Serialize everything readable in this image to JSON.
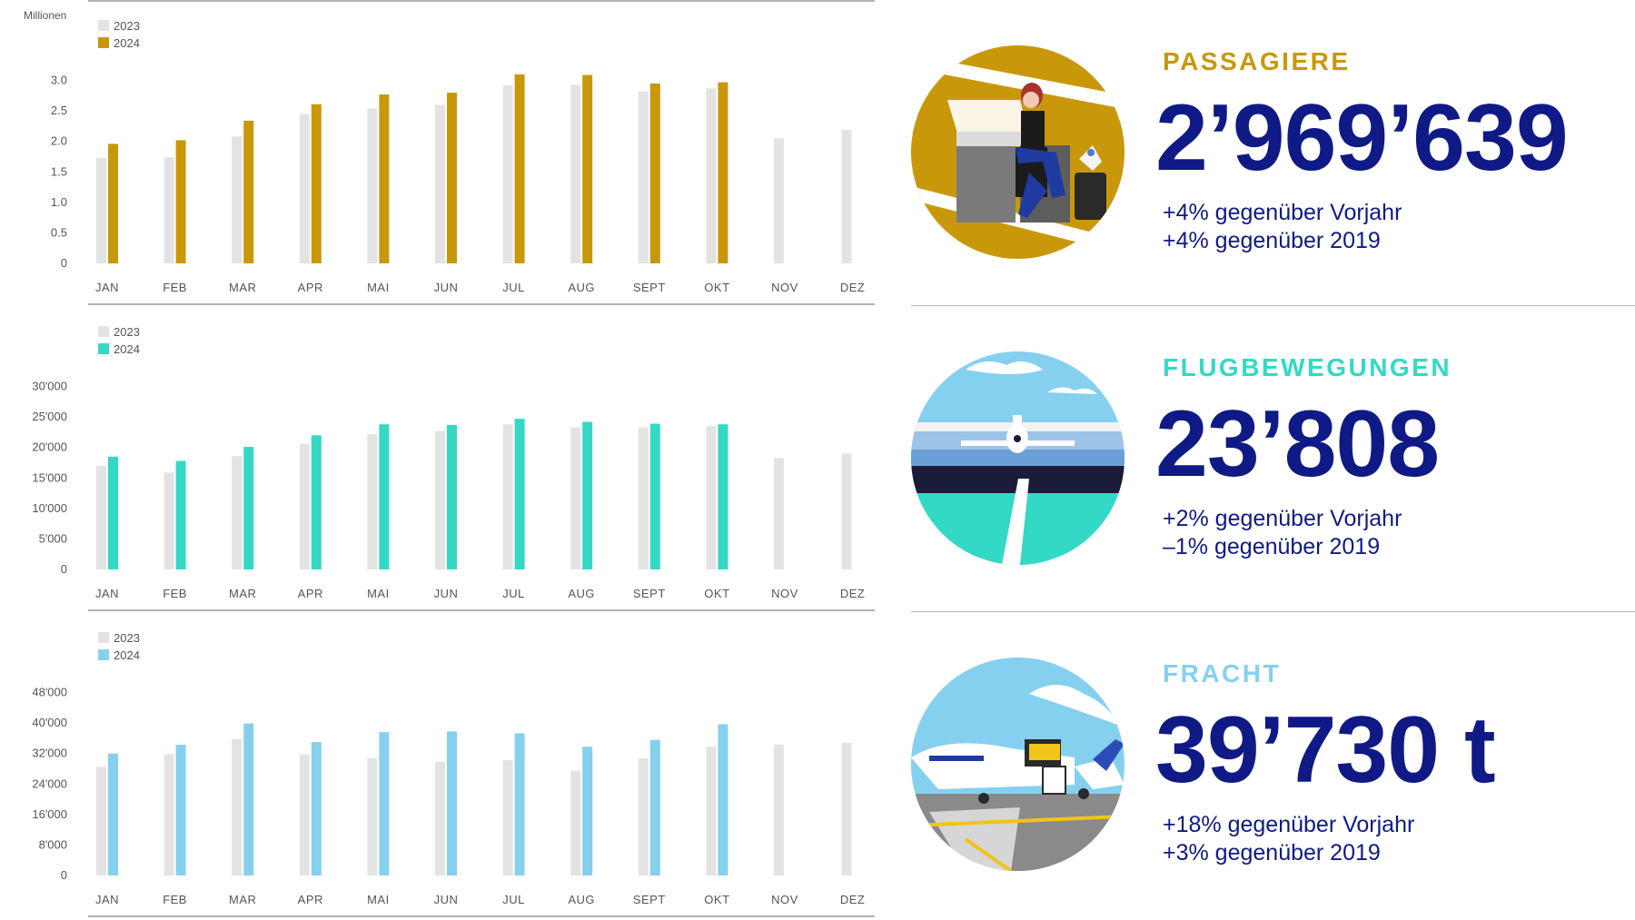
{
  "colors": {
    "bar_2023": "#e3e3e3",
    "axis_text": "#555555",
    "value_text": "#0f1a86",
    "gold": "#c9980a",
    "teal": "#33d9c5",
    "sky": "#86d0ef"
  },
  "chart_data": [
    {
      "type": "bar",
      "ylabel": "Millionen",
      "categories": [
        "JAN",
        "FEB",
        "MAR",
        "APR",
        "MAI",
        "JUN",
        "JUL",
        "AUG",
        "SEPT",
        "OKT",
        "NOV",
        "DEZ"
      ],
      "ylim": [
        0,
        3.5
      ],
      "yticks": [
        "3.0",
        "2.5",
        "2.0",
        "1.5",
        "1.0",
        "0.5",
        "0"
      ],
      "ytick_values": [
        3.0,
        2.5,
        2.0,
        1.5,
        1.0,
        0.5,
        0
      ],
      "legend_position": "top-left",
      "series": [
        {
          "name": "2023",
          "color": "#e3e3e3",
          "values": [
            1.73,
            1.74,
            2.08,
            2.45,
            2.54,
            2.6,
            2.92,
            2.93,
            2.82,
            2.87,
            2.05,
            2.19
          ]
        },
        {
          "name": "2024",
          "color": "#c9980a",
          "values": [
            1.96,
            2.02,
            2.34,
            2.61,
            2.77,
            2.8,
            3.1,
            3.09,
            2.95,
            2.97,
            null,
            null
          ]
        }
      ]
    },
    {
      "type": "bar",
      "ylabel": "",
      "categories": [
        "JAN",
        "FEB",
        "MAR",
        "APR",
        "MAI",
        "JUN",
        "JUL",
        "AUG",
        "SEPT",
        "OKT",
        "NOV",
        "DEZ"
      ],
      "ylim": [
        0,
        35000
      ],
      "yticks": [
        "30'000",
        "25'000",
        "20'000",
        "15'000",
        "10'000",
        "5'000",
        "0"
      ],
      "ytick_values": [
        30000,
        25000,
        20000,
        15000,
        10000,
        5000,
        0
      ],
      "legend_position": "top-left",
      "series": [
        {
          "name": "2023",
          "color": "#e3e3e3",
          "values": [
            17000,
            15900,
            18600,
            20600,
            22200,
            22700,
            23800,
            23300,
            23300,
            23500,
            18300,
            19000
          ]
        },
        {
          "name": "2024",
          "color": "#33d9c5",
          "values": [
            18500,
            17800,
            20100,
            22000,
            23800,
            23700,
            24700,
            24200,
            23900,
            23800,
            null,
            null
          ]
        }
      ]
    },
    {
      "type": "bar",
      "ylabel": "",
      "categories": [
        "JAN",
        "FEB",
        "MAR",
        "APR",
        "MAI",
        "JUN",
        "JUL",
        "AUG",
        "SEPT",
        "OKT",
        "NOV",
        "DEZ"
      ],
      "ylim": [
        0,
        56000
      ],
      "yticks": [
        "48'000",
        "40'000",
        "32'000",
        "24'000",
        "16'000",
        "8'000",
        "0"
      ],
      "ytick_values": [
        48000,
        40000,
        32000,
        24000,
        16000,
        8000,
        0
      ],
      "legend_position": "top-left",
      "series": [
        {
          "name": "2023",
          "color": "#e3e3e3",
          "values": [
            28500,
            31800,
            35800,
            31800,
            30800,
            29800,
            30300,
            27500,
            30800,
            33800,
            34300,
            34800
          ]
        },
        {
          "name": "2024",
          "color": "#86d0ef",
          "values": [
            32000,
            34300,
            39900,
            35000,
            37600,
            37800,
            37300,
            33800,
            35600,
            39700,
            null,
            null
          ]
        }
      ]
    }
  ],
  "kpis": [
    {
      "label": "PASSAGIERE",
      "value": "2’969’639",
      "sub1": "+4% gegenüber Vorjahr",
      "sub2": "+4% gegenüber 2019",
      "color": "#c9980a",
      "icon": "passenger-lounge-illustration"
    },
    {
      "label": "FLUGBEWEGUNGEN",
      "value": "23’808",
      "sub1": "+2% gegenüber Vorjahr",
      "sub2": "–1% gegenüber 2019",
      "color": "#33d9c5",
      "icon": "airplane-runway-illustration"
    },
    {
      "label": "FRACHT",
      "value": "39’730 t",
      "sub1": "+18% gegenüber Vorjahr",
      "sub2": "+3% gegenüber 2019",
      "color": "#86d0ef",
      "icon": "cargo-loading-illustration"
    }
  ]
}
